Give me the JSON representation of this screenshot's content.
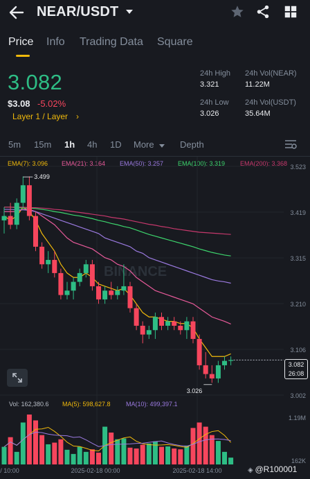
{
  "header": {
    "pair": "NEAR/USDT"
  },
  "tabs": [
    {
      "label": "Price"
    },
    {
      "label": "Info"
    },
    {
      "label": "Trading Data"
    },
    {
      "label": "Square"
    }
  ],
  "price": {
    "last": "3.082",
    "usd": "$3.08",
    "change": "-5.02%",
    "tag": "Layer 1 / Layer",
    "tag_chevron": "›"
  },
  "stats": {
    "high_label": "24h High",
    "high_value": "3.321",
    "low_label": "24h Low",
    "low_value": "3.026",
    "vol_base_label": "24h Vol(NEAR)",
    "vol_base_value": "11.22M",
    "vol_quote_label": "24h Vol(USDT)",
    "vol_quote_value": "35.64M"
  },
  "intervals": [
    {
      "label": "5m"
    },
    {
      "label": "15m"
    },
    {
      "label": "1h"
    },
    {
      "label": "4h"
    },
    {
      "label": "1D"
    },
    {
      "label": "More"
    },
    {
      "label": "Depth"
    }
  ],
  "ema_legend": [
    {
      "text": "EMA(7): 3.096",
      "color": "#f0b90b"
    },
    {
      "text": "EMA(21): 3.164",
      "color": "#e85a9a"
    },
    {
      "text": "EMA(50): 3.257",
      "color": "#9b7ae0"
    },
    {
      "text": "EMA(100): 3.319",
      "color": "#3dd56d"
    },
    {
      "text": "EMA(200): 3.368",
      "color": "#c6386c"
    }
  ],
  "colors": {
    "up": "#2ebd85",
    "down": "#f6465d",
    "accent": "#f0b90b",
    "bg": "#181a20"
  },
  "chart_data": {
    "type": "candlestick",
    "price_axis_ticks": [
      "3.523",
      "3.419",
      "3.315",
      "3.210",
      "3.106",
      "3.002"
    ],
    "time_axis_ticks": [
      "/ 10:00",
      "2025-02-18 00:00",
      "2025-02-18 14:00"
    ],
    "ylim": [
      3.002,
      3.523
    ],
    "current_price": "3.082",
    "countdown": "26:08",
    "high_marker": "3.499",
    "low_marker": "3.026",
    "watermark": "BINANCE",
    "candles": [
      {
        "o": 3.4,
        "h": 3.43,
        "l": 3.37,
        "c": 3.41
      },
      {
        "o": 3.41,
        "h": 3.44,
        "l": 3.38,
        "c": 3.39
      },
      {
        "o": 3.39,
        "h": 3.45,
        "l": 3.38,
        "c": 3.44
      },
      {
        "o": 3.44,
        "h": 3.5,
        "l": 3.43,
        "c": 3.48
      },
      {
        "o": 3.48,
        "h": 3.5,
        "l": 3.4,
        "c": 3.41
      },
      {
        "o": 3.41,
        "h": 3.42,
        "l": 3.33,
        "c": 3.34
      },
      {
        "o": 3.34,
        "h": 3.35,
        "l": 3.29,
        "c": 3.3
      },
      {
        "o": 3.3,
        "h": 3.33,
        "l": 3.28,
        "c": 3.31
      },
      {
        "o": 3.31,
        "h": 3.33,
        "l": 3.27,
        "c": 3.28
      },
      {
        "o": 3.28,
        "h": 3.29,
        "l": 3.22,
        "c": 3.23
      },
      {
        "o": 3.23,
        "h": 3.26,
        "l": 3.22,
        "c": 3.24
      },
      {
        "o": 3.24,
        "h": 3.27,
        "l": 3.22,
        "c": 3.26
      },
      {
        "o": 3.26,
        "h": 3.29,
        "l": 3.25,
        "c": 3.28
      },
      {
        "o": 3.28,
        "h": 3.31,
        "l": 3.27,
        "c": 3.3
      },
      {
        "o": 3.3,
        "h": 3.31,
        "l": 3.24,
        "c": 3.25
      },
      {
        "o": 3.25,
        "h": 3.26,
        "l": 3.21,
        "c": 3.22
      },
      {
        "o": 3.22,
        "h": 3.25,
        "l": 3.21,
        "c": 3.24
      },
      {
        "o": 3.24,
        "h": 3.26,
        "l": 3.22,
        "c": 3.23
      },
      {
        "o": 3.23,
        "h": 3.25,
        "l": 3.22,
        "c": 3.24
      },
      {
        "o": 3.24,
        "h": 3.3,
        "l": 3.23,
        "c": 3.25
      },
      {
        "o": 3.25,
        "h": 3.26,
        "l": 3.19,
        "c": 3.2
      },
      {
        "o": 3.2,
        "h": 3.21,
        "l": 3.15,
        "c": 3.16
      },
      {
        "o": 3.16,
        "h": 3.17,
        "l": 3.12,
        "c": 3.14
      },
      {
        "o": 3.14,
        "h": 3.16,
        "l": 3.13,
        "c": 3.15
      },
      {
        "o": 3.15,
        "h": 3.19,
        "l": 3.13,
        "c": 3.18
      },
      {
        "o": 3.18,
        "h": 3.19,
        "l": 3.15,
        "c": 3.16
      },
      {
        "o": 3.16,
        "h": 3.18,
        "l": 3.15,
        "c": 3.17
      },
      {
        "o": 3.17,
        "h": 3.18,
        "l": 3.15,
        "c": 3.16
      },
      {
        "o": 3.16,
        "h": 3.17,
        "l": 3.14,
        "c": 3.15
      },
      {
        "o": 3.15,
        "h": 3.18,
        "l": 3.13,
        "c": 3.17
      },
      {
        "o": 3.17,
        "h": 3.18,
        "l": 3.12,
        "c": 3.13
      },
      {
        "o": 3.13,
        "h": 3.14,
        "l": 3.06,
        "c": 3.07
      },
      {
        "o": 3.07,
        "h": 3.1,
        "l": 3.04,
        "c": 3.05
      },
      {
        "o": 3.05,
        "h": 3.07,
        "l": 3.03,
        "c": 3.04
      },
      {
        "o": 3.04,
        "h": 3.08,
        "l": 3.03,
        "c": 3.07
      },
      {
        "o": 3.07,
        "h": 3.09,
        "l": 3.06,
        "c": 3.08
      },
      {
        "o": 3.08,
        "h": 3.09,
        "l": 3.07,
        "c": 3.082
      }
    ],
    "ema": [
      {
        "name": "EMA(7)",
        "color": "#f0b90b",
        "values": [
          3.41,
          3.4,
          3.41,
          3.43,
          3.42,
          3.4,
          3.37,
          3.35,
          3.33,
          3.3,
          3.28,
          3.27,
          3.27,
          3.28,
          3.27,
          3.255,
          3.25,
          3.245,
          3.24,
          3.245,
          3.23,
          3.21,
          3.19,
          3.18,
          3.18,
          3.175,
          3.17,
          3.17,
          3.165,
          3.165,
          3.155,
          3.13,
          3.11,
          3.09,
          3.09,
          3.09,
          3.096
        ]
      },
      {
        "name": "EMA(21)",
        "color": "#e85a9a",
        "values": [
          3.42,
          3.42,
          3.42,
          3.425,
          3.425,
          3.42,
          3.41,
          3.4,
          3.39,
          3.375,
          3.36,
          3.35,
          3.345,
          3.34,
          3.335,
          3.325,
          3.315,
          3.31,
          3.3,
          3.295,
          3.285,
          3.27,
          3.26,
          3.25,
          3.24,
          3.235,
          3.23,
          3.225,
          3.22,
          3.215,
          3.21,
          3.2,
          3.19,
          3.18,
          3.175,
          3.17,
          3.164
        ]
      },
      {
        "name": "EMA(50)",
        "color": "#9b7ae0",
        "values": [
          3.425,
          3.425,
          3.424,
          3.424,
          3.423,
          3.42,
          3.415,
          3.41,
          3.405,
          3.4,
          3.395,
          3.39,
          3.385,
          3.38,
          3.375,
          3.37,
          3.36,
          3.355,
          3.35,
          3.345,
          3.34,
          3.33,
          3.325,
          3.315,
          3.31,
          3.305,
          3.3,
          3.295,
          3.29,
          3.285,
          3.28,
          3.275,
          3.27,
          3.265,
          3.262,
          3.26,
          3.257
        ]
      },
      {
        "name": "EMA(100)",
        "color": "#3dd56d",
        "values": [
          3.43,
          3.43,
          3.429,
          3.428,
          3.428,
          3.427,
          3.425,
          3.423,
          3.42,
          3.418,
          3.415,
          3.412,
          3.41,
          3.407,
          3.404,
          3.4,
          3.397,
          3.393,
          3.39,
          3.386,
          3.383,
          3.378,
          3.373,
          3.368,
          3.364,
          3.36,
          3.356,
          3.352,
          3.348,
          3.344,
          3.34,
          3.335,
          3.331,
          3.327,
          3.324,
          3.321,
          3.319
        ]
      },
      {
        "name": "EMA(200)",
        "color": "#c6386c",
        "values": [
          3.43,
          3.43,
          3.43,
          3.43,
          3.429,
          3.429,
          3.428,
          3.427,
          3.425,
          3.424,
          3.422,
          3.42,
          3.418,
          3.416,
          3.414,
          3.412,
          3.41,
          3.407,
          3.405,
          3.403,
          3.4,
          3.397,
          3.394,
          3.391,
          3.389,
          3.386,
          3.384,
          3.381,
          3.379,
          3.377,
          3.375,
          3.373,
          3.372,
          3.371,
          3.37,
          3.369,
          3.368
        ]
      }
    ],
    "volume": {
      "vol_label": "Vol: 162,380.6",
      "ma5_label": "MA(5): 598,627.8",
      "ma10_label": "MA(10): 499,397.1",
      "ma5_color": "#f0b90b",
      "ma10_color": "#9b7ae0",
      "axis_max": "1.19M",
      "axis_min": "162K",
      "max_value": 1190000,
      "bars": [
        420000,
        650000,
        300000,
        1000000,
        1190000,
        1050000,
        700000,
        480000,
        520000,
        600000,
        350000,
        250000,
        420000,
        300000,
        360000,
        280000,
        900000,
        760000,
        600000,
        620000,
        400000,
        380000,
        470000,
        500000,
        550000,
        420000,
        430000,
        380000,
        360000,
        450000,
        870000,
        1000000,
        900000,
        700000,
        560000,
        300000,
        162380
      ]
    }
  }
}
